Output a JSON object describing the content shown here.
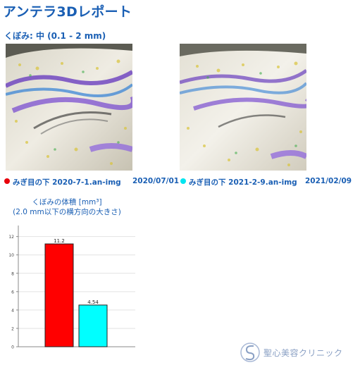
{
  "report": {
    "title": "アンテラ3Dレポート",
    "subtitle": "くぼみ: 中 (0.1 - 2 mm)"
  },
  "scans": [
    {
      "label": "みぎ目の下 2020-7-1.an-img",
      "date": "2020/07/01",
      "color": "#e8000b"
    },
    {
      "label": "みぎ目の下 2021-2-9.an-img",
      "date": "2021/02/09",
      "color": "#00e5f0"
    }
  ],
  "chart_data": {
    "type": "bar",
    "title": "くぼみの体積 [mm³]",
    "subtitle": "(2.0 mm以下の横方向の大きさ)",
    "categories": [
      "2020/07/01",
      "2021/02/09"
    ],
    "values": [
      11.2,
      4.54
    ],
    "value_labels": [
      "11.2",
      "4.54"
    ],
    "colors": [
      "#ff0000",
      "#00ffff"
    ],
    "yticks": [
      0,
      2,
      4,
      6,
      8,
      10,
      12
    ],
    "ylim": [
      0,
      13.2
    ],
    "grid": true
  },
  "clinic": {
    "name": "聖心美容クリニック"
  }
}
